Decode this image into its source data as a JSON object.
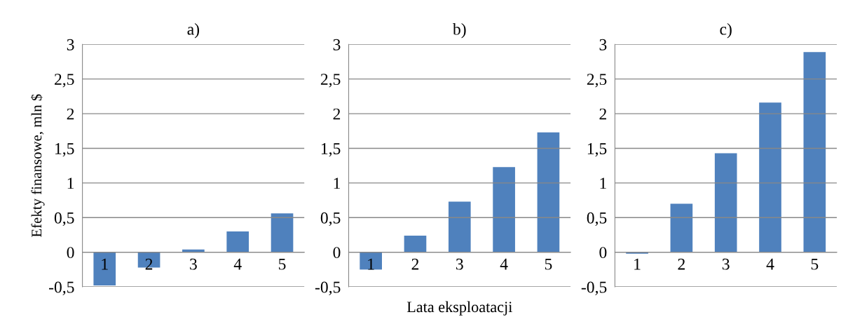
{
  "chart_data": [
    {
      "type": "bar",
      "title": "a)",
      "ylabel": "Efekty finansowe, mln $",
      "categories": [
        "1",
        "2",
        "3",
        "4",
        "5"
      ],
      "values": [
        -0.48,
        -0.22,
        0.04,
        0.3,
        0.56
      ],
      "color": "#4f81bd",
      "ylim": [
        -0.5,
        3
      ],
      "yticks": [
        {
          "value": -0.5,
          "label": "-0,5"
        },
        0,
        {
          "value": 0.5,
          "label": "0,5"
        },
        1,
        {
          "value": 1.5,
          "label": "1,5"
        },
        2,
        {
          "value": 2.5,
          "label": "2,5"
        },
        3
      ],
      "grid": "y"
    },
    {
      "type": "bar",
      "title": "b)",
      "xlabel": "Lata eksploatacji",
      "categories": [
        "1",
        "2",
        "3",
        "4",
        "5"
      ],
      "values": [
        -0.25,
        0.24,
        0.73,
        1.23,
        1.73
      ],
      "color": "#4f81bd",
      "ylim": [
        -0.5,
        3
      ],
      "yticks": [
        {
          "value": -0.5,
          "label": "-0,5"
        },
        0,
        {
          "value": 0.5,
          "label": "0,5"
        },
        1,
        {
          "value": 1.5,
          "label": "1,5"
        },
        2,
        {
          "value": 2.5,
          "label": "2,5"
        },
        3
      ],
      "grid": "y"
    },
    {
      "type": "bar",
      "title": "c)",
      "categories": [
        "1",
        "2",
        "3",
        "4",
        "5"
      ],
      "values": [
        -0.02,
        0.7,
        1.43,
        2.16,
        2.89
      ],
      "color": "#4f81bd",
      "ylim": [
        -0.5,
        3
      ],
      "yticks": [
        {
          "value": -0.5,
          "label": "-0,5"
        },
        0,
        {
          "value": 0.5,
          "label": "0,5"
        },
        1,
        {
          "value": 1.5,
          "label": "1,5"
        },
        2,
        {
          "value": 2.5,
          "label": "2,5"
        },
        3
      ],
      "grid": "y"
    }
  ]
}
